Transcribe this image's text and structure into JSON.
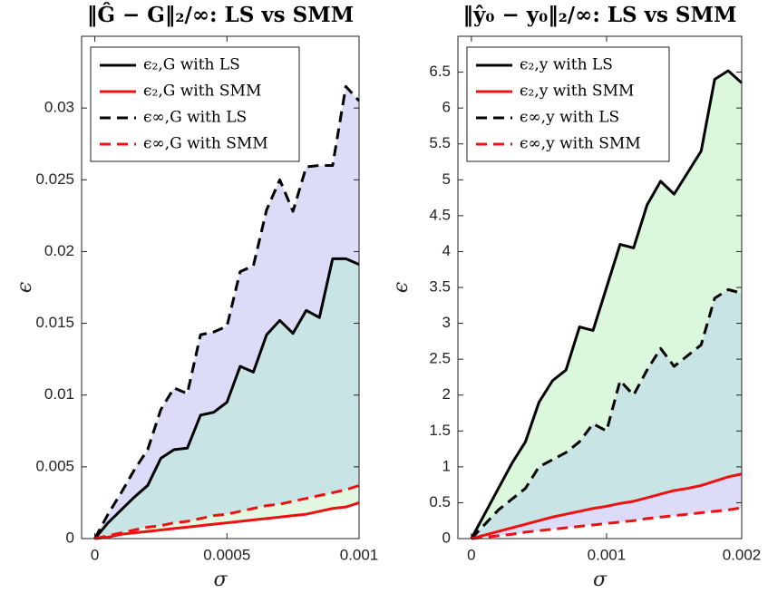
{
  "chart_data": [
    {
      "type": "line",
      "title": "‖Ĝ − G‖₂/∞: LS vs SMM",
      "xlabel": "σ",
      "ylabel": "ϵ",
      "x": [
        0,
        5e-05,
        0.0001,
        0.00015,
        0.0002,
        0.00025,
        0.0003,
        0.00035,
        0.0004,
        0.00045,
        0.0005,
        0.00055,
        0.0006,
        0.00065,
        0.0007,
        0.00075,
        0.0008,
        0.00085,
        0.0009,
        0.00095,
        0.001
      ],
      "xlim": [
        -5e-05,
        0.001
      ],
      "xticks": [
        0,
        0.0005,
        0.001
      ],
      "ylim": [
        0,
        0.035
      ],
      "yticks": [
        0,
        0.005,
        0.01,
        0.015,
        0.02,
        0.025,
        0.03
      ],
      "legend": "upper left",
      "series": [
        {
          "name": "ϵ∞,G with LS",
          "color": "#000000",
          "style": "dashed",
          "fill": "#dcdcf8",
          "values": [
            0,
            0.0017,
            0.0032,
            0.0048,
            0.0062,
            0.009,
            0.0105,
            0.0101,
            0.0142,
            0.0144,
            0.0148,
            0.0186,
            0.019,
            0.0229,
            0.025,
            0.0228,
            0.0259,
            0.026,
            0.026,
            0.0315,
            0.0305
          ]
        },
        {
          "name": "ϵ₂,G with LS",
          "color": "#000000",
          "style": "solid",
          "fill": "#c9e4e4",
          "values": [
            0,
            0.0011,
            0.002,
            0.0029,
            0.0037,
            0.0056,
            0.0062,
            0.0063,
            0.0086,
            0.0088,
            0.0095,
            0.012,
            0.0116,
            0.0142,
            0.0152,
            0.0143,
            0.0159,
            0.0154,
            0.0195,
            0.0195,
            0.0191
          ]
        },
        {
          "name": "ϵ∞,G with SMM",
          "color": "#ee1111",
          "style": "dashed",
          "fill": "#e3f8e0",
          "values": [
            0,
            0.0002,
            0.0004,
            0.0006,
            0.0008,
            0.0009,
            0.0011,
            0.0012,
            0.0014,
            0.0016,
            0.0017,
            0.0019,
            0.0021,
            0.0023,
            0.0024,
            0.0026,
            0.0028,
            0.003,
            0.0032,
            0.0034,
            0.0037
          ]
        },
        {
          "name": "ϵ₂,G with SMM",
          "color": "#ee1111",
          "style": "solid",
          "values": [
            0,
            0.0001,
            0.0003,
            0.0004,
            0.0005,
            0.0006,
            0.0007,
            0.0008,
            0.0009,
            0.001,
            0.0011,
            0.0012,
            0.0013,
            0.0014,
            0.0015,
            0.0016,
            0.0017,
            0.0019,
            0.0021,
            0.0022,
            0.0025
          ]
        }
      ],
      "legend_order": [
        1,
        3,
        0,
        2
      ]
    },
    {
      "type": "line",
      "title": "‖ŷ₀ − y₀‖₂/∞: LS vs SMM",
      "xlabel": "σ",
      "ylabel": "ϵ",
      "x": [
        0,
        0.0001,
        0.0002,
        0.0003,
        0.0004,
        0.0005,
        0.0006,
        0.0007,
        0.0008,
        0.0009,
        0.001,
        0.0011,
        0.0012,
        0.0013,
        0.0014,
        0.0015,
        0.0016,
        0.0017,
        0.0018,
        0.0019,
        0.002
      ],
      "xlim": [
        -0.0001,
        0.002
      ],
      "xticks": [
        0,
        0.001,
        0.002
      ],
      "ylim": [
        0,
        7
      ],
      "yticks": [
        0,
        0.5,
        1,
        1.5,
        2,
        2.5,
        3,
        3.5,
        4,
        4.5,
        5,
        5.5,
        6,
        6.5
      ],
      "legend": "upper left",
      "series": [
        {
          "name": "ϵ₂,y with LS",
          "color": "#000000",
          "style": "solid",
          "fill": "#dcf8dc",
          "values": [
            0,
            0.35,
            0.7,
            1.05,
            1.35,
            1.9,
            2.2,
            2.35,
            2.95,
            2.9,
            3.5,
            4.1,
            4.05,
            4.65,
            4.98,
            4.8,
            5.1,
            5.4,
            6.4,
            6.52,
            6.35
          ]
        },
        {
          "name": "ϵ∞,y with LS",
          "color": "#000000",
          "style": "dashed",
          "fill": "#c9e4e4",
          "values": [
            0,
            0.2,
            0.4,
            0.55,
            0.7,
            1.0,
            1.1,
            1.2,
            1.35,
            1.6,
            1.5,
            2.2,
            2.0,
            2.35,
            2.65,
            2.4,
            2.55,
            2.7,
            3.35,
            3.47,
            3.42
          ]
        },
        {
          "name": "ϵ₂,y with SMM",
          "color": "#ee1111",
          "style": "solid",
          "fill": "#dcdcf8",
          "values": [
            0,
            0.05,
            0.1,
            0.15,
            0.2,
            0.25,
            0.3,
            0.34,
            0.38,
            0.42,
            0.45,
            0.49,
            0.52,
            0.57,
            0.62,
            0.67,
            0.7,
            0.74,
            0.8,
            0.86,
            0.9
          ]
        },
        {
          "name": "ϵ∞,y with SMM",
          "color": "#ee1111",
          "style": "dashed",
          "values": [
            0,
            0.02,
            0.04,
            0.06,
            0.09,
            0.11,
            0.13,
            0.15,
            0.17,
            0.19,
            0.21,
            0.23,
            0.25,
            0.28,
            0.3,
            0.32,
            0.34,
            0.36,
            0.38,
            0.4,
            0.43
          ]
        }
      ],
      "legend_order": [
        0,
        2,
        1,
        3
      ]
    }
  ]
}
